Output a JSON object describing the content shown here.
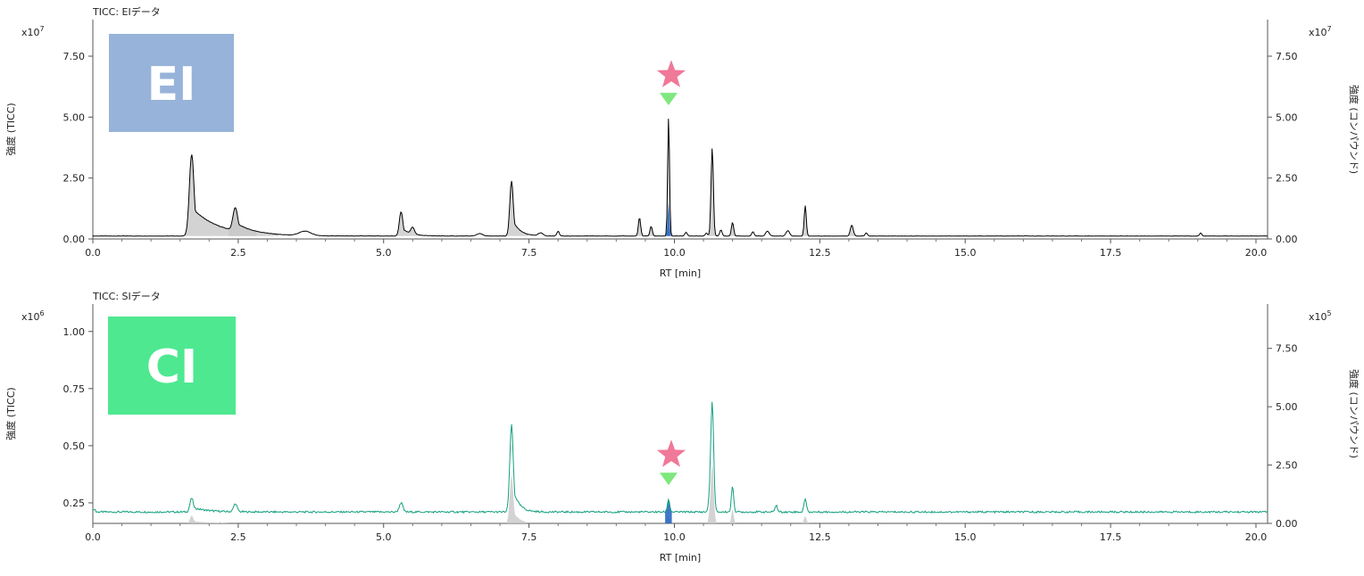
{
  "chart_data": [
    {
      "type": "line",
      "title": "TICC: EIデータ",
      "badge": {
        "label": "EI",
        "color": "#97b3d9"
      },
      "line_color": "#000000",
      "highlight_color": "#1f5fbf",
      "fill_color": "#c8c8c8",
      "marker": {
        "x": 9.9,
        "star_color": "#f07898",
        "triangle_color": "#7ee87e"
      },
      "xlabel": "RT [min]",
      "xlim": [
        0,
        20.2
      ],
      "x_ticks": [
        "0.0",
        "2.5",
        "5.0",
        "7.5",
        "10.0",
        "12.5",
        "15.0",
        "17.5",
        "20.0"
      ],
      "ylabel_left": "強度 (TICC)",
      "ylabel_right": "強度 (コンパウンド)",
      "scale_left": "x10",
      "scale_left_exp": "7",
      "scale_right": "x10",
      "scale_right_exp": "7",
      "ylim": [
        0,
        9.0
      ],
      "y_ticks_left": [
        "0.00",
        "2.50",
        "5.00",
        "7.50"
      ],
      "ylim_right": [
        0,
        9.0
      ],
      "y_ticks_right": [
        "0.00",
        "2.50",
        "5.00",
        "7.50"
      ],
      "baseline": 0.12,
      "peaks": [
        {
          "x": 1.7,
          "h": 3.35,
          "w": 0.04,
          "tail": 0.45
        },
        {
          "x": 2.45,
          "h": 0.95,
          "w": 0.04,
          "tail": 0.3
        },
        {
          "x": 3.65,
          "h": 0.18,
          "w": 0.1
        },
        {
          "x": 5.3,
          "h": 1.0,
          "w": 0.03,
          "tail": 0.15
        },
        {
          "x": 5.5,
          "h": 0.28,
          "w": 0.03
        },
        {
          "x": 6.65,
          "h": 0.1,
          "w": 0.05
        },
        {
          "x": 7.2,
          "h": 2.25,
          "w": 0.03,
          "tail": 0.12
        },
        {
          "x": 7.7,
          "h": 0.12,
          "w": 0.04
        },
        {
          "x": 8.0,
          "h": 0.2,
          "w": 0.02
        },
        {
          "x": 9.4,
          "h": 0.75,
          "w": 0.02
        },
        {
          "x": 9.6,
          "h": 0.4,
          "w": 0.02
        },
        {
          "x": 9.9,
          "h": 4.85,
          "w": 0.016
        },
        {
          "x": 10.2,
          "h": 0.15,
          "w": 0.02
        },
        {
          "x": 10.55,
          "h": 0.12,
          "w": 0.02
        },
        {
          "x": 10.65,
          "h": 3.6,
          "w": 0.02
        },
        {
          "x": 10.8,
          "h": 0.25,
          "w": 0.02
        },
        {
          "x": 11.0,
          "h": 0.55,
          "w": 0.02
        },
        {
          "x": 11.35,
          "h": 0.18,
          "w": 0.02
        },
        {
          "x": 11.6,
          "h": 0.2,
          "w": 0.03
        },
        {
          "x": 11.95,
          "h": 0.22,
          "w": 0.03
        },
        {
          "x": 12.25,
          "h": 1.25,
          "w": 0.018
        },
        {
          "x": 13.05,
          "h": 0.45,
          "w": 0.025
        },
        {
          "x": 13.3,
          "h": 0.12,
          "w": 0.02
        },
        {
          "x": 19.05,
          "h": 0.12,
          "w": 0.02
        }
      ]
    },
    {
      "type": "line",
      "title": "TICC: SIデータ",
      "badge": {
        "label": "CI",
        "color": "#4ee890"
      },
      "line_color": "#13a07e",
      "highlight_color": "#1f5fbf",
      "fill_color": "#c8c8c8",
      "marker": {
        "x": 9.9,
        "star_color": "#f07898",
        "triangle_color": "#7ee87e"
      },
      "xlabel": "RT [min]",
      "xlim": [
        0,
        20.2
      ],
      "x_ticks": [
        "0.0",
        "2.5",
        "5.0",
        "7.5",
        "10.0",
        "12.5",
        "15.0",
        "17.5",
        "20.0"
      ],
      "ylabel_left": "強度 (TICC)",
      "ylabel_right": "強度 (コンパウンド)",
      "scale_left": "x10",
      "scale_left_exp": "6",
      "scale_right": "x10",
      "scale_right_exp": "5",
      "ylim": [
        0.16,
        1.12
      ],
      "y_ticks_left": [
        "0.25",
        "0.50",
        "0.75",
        "1.00"
      ],
      "ylim_right": [
        0,
        9.4
      ],
      "y_ticks_right": [
        "0.00",
        "2.50",
        "5.00",
        "7.50"
      ],
      "baseline": 0.21,
      "peaks": [
        {
          "x": 1.7,
          "h": 0.06,
          "w": 0.03,
          "tail": 0.25
        },
        {
          "x": 2.45,
          "h": 0.035,
          "w": 0.03
        },
        {
          "x": 5.3,
          "h": 0.04,
          "w": 0.03
        },
        {
          "x": 7.2,
          "h": 0.38,
          "w": 0.03,
          "tail": 0.1
        },
        {
          "x": 9.9,
          "h": 0.055,
          "w": 0.02
        },
        {
          "x": 10.6,
          "h": 0.04,
          "w": 0.02
        },
        {
          "x": 10.65,
          "h": 0.48,
          "w": 0.025
        },
        {
          "x": 11.0,
          "h": 0.11,
          "w": 0.02
        },
        {
          "x": 11.75,
          "h": 0.03,
          "w": 0.02
        },
        {
          "x": 12.25,
          "h": 0.06,
          "w": 0.02
        }
      ]
    }
  ]
}
